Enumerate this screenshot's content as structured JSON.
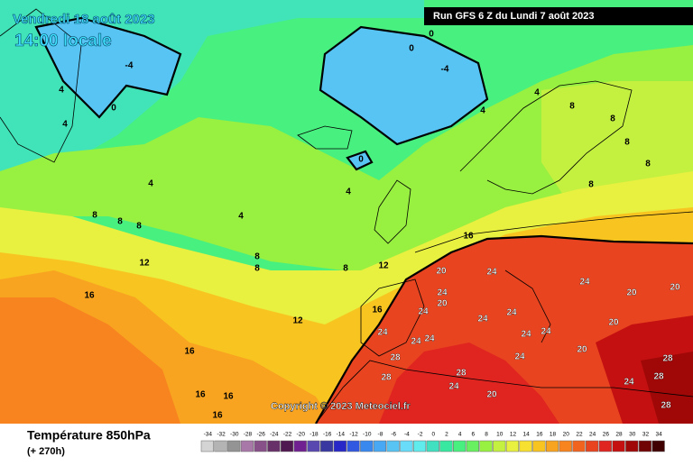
{
  "header": {
    "date": "Vendredi 18 août 2023",
    "time": "14:00 locale",
    "run": "Run GFS 6 Z du Lundi 7 août 2023"
  },
  "copyright": "Copyright © 2023 Meteociel.fr",
  "footer": {
    "title": "Température 850hPa",
    "lead": "(+ 270h)"
  },
  "contour_labels": [
    -4,
    0,
    4,
    4,
    -4,
    0,
    0,
    0,
    4,
    4,
    4,
    4,
    4,
    8,
    8,
    8,
    8,
    8,
    8,
    12,
    12,
    12,
    16,
    16,
    16,
    16,
    16,
    16,
    16,
    20,
    20,
    24,
    24,
    24,
    24,
    24,
    24,
    28,
    28,
    24,
    24,
    24,
    24,
    24,
    24,
    20,
    20,
    20,
    20,
    24,
    28,
    28,
    28,
    20,
    24,
    28,
    8,
    8,
    8,
    8,
    8
  ],
  "colorbar": {
    "ticks": [
      -34,
      -32,
      -30,
      -28,
      -26,
      -24,
      -22,
      -20,
      -18,
      -16,
      -14,
      -12,
      -10,
      -8,
      -6,
      -4,
      -2,
      0,
      2,
      4,
      6,
      8,
      10,
      12,
      14,
      16,
      18,
      20,
      22,
      24,
      26,
      28,
      30,
      32,
      34
    ],
    "colors": [
      "#d4d4d4",
      "#b4b4b4",
      "#949494",
      "#a878a8",
      "#885088",
      "#683068",
      "#501850",
      "#702090",
      "#5848b0",
      "#3838a0",
      "#2828c8",
      "#3058e0",
      "#3888f0",
      "#48a8f4",
      "#58c4f4",
      "#68dcf8",
      "#60ecec",
      "#40e0c0",
      "#38e8a0",
      "#48f080",
      "#68f060",
      "#98f040",
      "#c4f040",
      "#e8f040",
      "#f8e030",
      "#f8c420",
      "#f8a420",
      "#f88420",
      "#f06420",
      "#e84420",
      "#e02420",
      "#c41010",
      "#a00808",
      "#700404",
      "#400000"
    ]
  }
}
